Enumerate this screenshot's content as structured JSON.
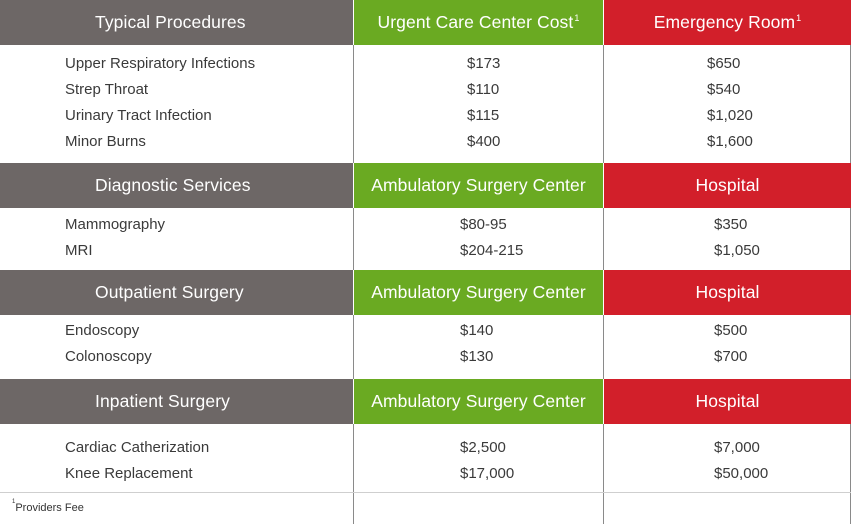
{
  "sections": [
    {
      "headers": [
        "Typical Procedures",
        "Urgent Care Center Cost",
        "Emergency Room"
      ],
      "header_sup": [
        "",
        "1",
        "1"
      ],
      "rows": [
        [
          "Upper Respiratory Infections",
          "$173",
          "$650"
        ],
        [
          "Strep Throat",
          "$110",
          "$540"
        ],
        [
          "Urinary Tract Infection",
          "$115",
          "$1,020"
        ],
        [
          "Minor Burns",
          "$400",
          "$1,600"
        ]
      ]
    },
    {
      "headers": [
        "Diagnostic Services",
        "Ambulatory Surgery Center",
        "Hospital"
      ],
      "header_sup": [
        "",
        "",
        ""
      ],
      "rows": [
        [
          "Mammography",
          "$80-95",
          "$350"
        ],
        [
          "MRI",
          "$204-215",
          "$1,050"
        ]
      ]
    },
    {
      "headers": [
        "Outpatient Surgery",
        "Ambulatory Surgery Center",
        "Hospital"
      ],
      "header_sup": [
        "",
        "",
        ""
      ],
      "rows": [
        [
          "Endoscopy",
          "$140",
          "$500"
        ],
        [
          "Colonoscopy",
          "$130",
          "$700"
        ]
      ]
    },
    {
      "headers": [
        "Inpatient Surgery",
        "Ambulatory Surgery Center",
        "Hospital"
      ],
      "header_sup": [
        "",
        "",
        ""
      ],
      "rows": [
        [
          "Cardiac Catherization",
          "$2,500",
          "$7,000"
        ],
        [
          "Knee Replacement",
          "$17,000",
          "$50,000"
        ]
      ]
    }
  ],
  "footnote": {
    "marker": "1",
    "text": "Providers Fee"
  },
  "colors": {
    "category_header": "#6d6766",
    "lower_cost_header": "#6aaa22",
    "higher_cost_header": "#d21f2a"
  }
}
